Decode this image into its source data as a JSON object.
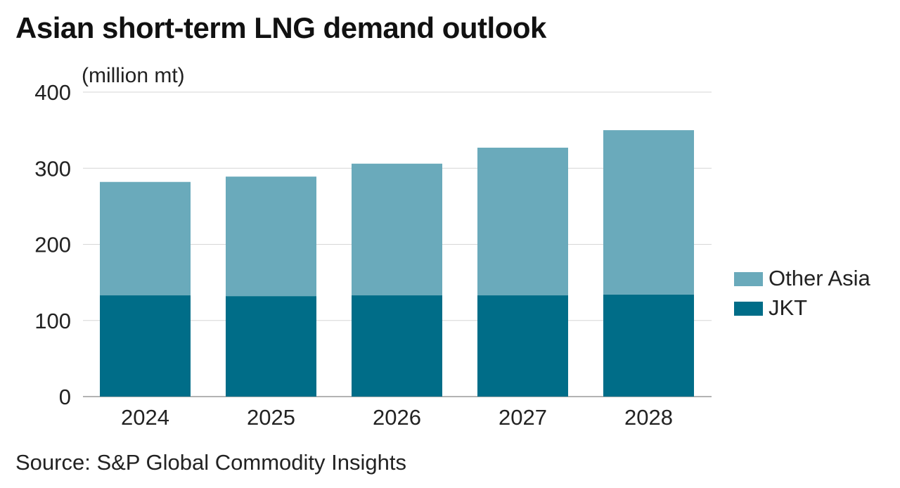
{
  "title": "Asian short-term LNG demand outlook",
  "source": "Source: S&P Global Commodity Insights",
  "chart_data": {
    "type": "bar",
    "stacked": true,
    "title": "Asian short-term LNG demand outlook",
    "unit_label": "(million mt)",
    "categories": [
      "2024",
      "2025",
      "2026",
      "2027",
      "2028"
    ],
    "series": [
      {
        "name": "JKT",
        "values": [
          133,
          132,
          133,
          133,
          134
        ],
        "color": "#006d88"
      },
      {
        "name": "Other Asia",
        "values": [
          149,
          157,
          173,
          194,
          216
        ],
        "color": "#6aaabb"
      }
    ],
    "ylim": [
      0,
      400
    ],
    "yticks": [
      "0",
      "100",
      "200",
      "300",
      "400"
    ],
    "grid": true,
    "legend_placement": "right",
    "legend_order": [
      "Other Asia",
      "JKT"
    ]
  }
}
